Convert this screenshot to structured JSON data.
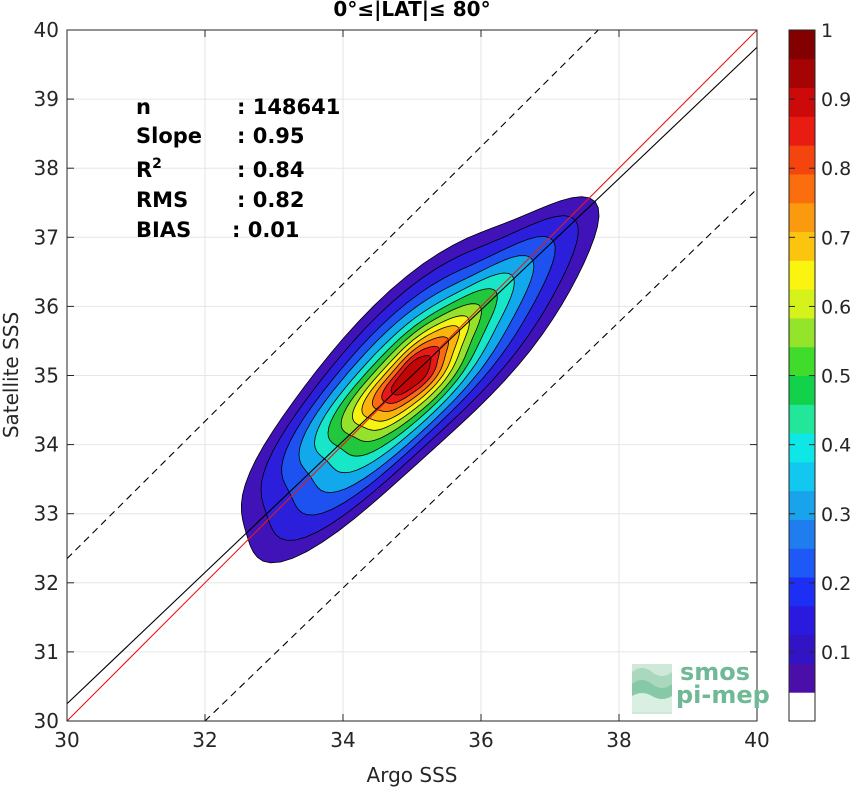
{
  "chart_data": {
    "type": "contour",
    "title": "0°≤|LAT|≤ 80°",
    "xlabel": "Argo SSS",
    "ylabel": "Satellite SSS",
    "xlim": [
      30,
      40
    ],
    "ylim": [
      30,
      40
    ],
    "xticks": [
      "30",
      "32",
      "34",
      "36",
      "38",
      "40"
    ],
    "yticks": [
      "30",
      "31",
      "32",
      "33",
      "34",
      "35",
      "36",
      "37",
      "38",
      "39",
      "40"
    ],
    "grid": true,
    "stats": [
      {
        "label": "n",
        "value": ": 148641"
      },
      {
        "label": "Slope",
        "value": ": 0.95"
      },
      {
        "label": "R",
        "sup": "2",
        "value": ": 0.84"
      },
      {
        "label": "RMS",
        "value": ": 0.82"
      },
      {
        "label": "BIAS",
        "value": ": 0.01"
      }
    ],
    "lines": [
      {
        "kind": "identity",
        "color": "#e41a1c",
        "x": [
          30,
          40
        ],
        "y": [
          30,
          40
        ]
      },
      {
        "kind": "fit",
        "color": "#000000",
        "x": [
          30,
          40
        ],
        "y": [
          30.25,
          39.75
        ]
      },
      {
        "kind": "upper-bound",
        "color": "#000000",
        "dash": true,
        "x": [
          30,
          37.7
        ],
        "y": [
          32.35,
          40
        ]
      },
      {
        "kind": "lower-bound",
        "color": "#000000",
        "dash": true,
        "x": [
          32.0,
          40
        ],
        "y": [
          30,
          37.7
        ]
      }
    ],
    "contour_center": {
      "x": 35.0,
      "y": 35.0
    },
    "contour_levels": [
      {
        "level": 0.05,
        "color": "#3f13b7",
        "rx": 3.5,
        "ry": 1.05
      },
      {
        "level": 0.1,
        "color": "#2b1fdb",
        "rx": 3.1,
        "ry": 0.92
      },
      {
        "level": 0.2,
        "color": "#1d52f0",
        "rx": 2.65,
        "ry": 0.8
      },
      {
        "level": 0.3,
        "color": "#11a8ec",
        "rx": 2.25,
        "ry": 0.7
      },
      {
        "level": 0.4,
        "color": "#17e6c8",
        "rx": 1.9,
        "ry": 0.6
      },
      {
        "level": 0.5,
        "color": "#21c73c",
        "rx": 1.6,
        "ry": 0.52
      },
      {
        "level": 0.6,
        "color": "#95e12b",
        "rx": 1.32,
        "ry": 0.45
      },
      {
        "level": 0.65,
        "color": "#f4f314",
        "rx": 1.1,
        "ry": 0.38
      },
      {
        "level": 0.7,
        "color": "#fbb40d",
        "rx": 0.92,
        "ry": 0.32
      },
      {
        "level": 0.8,
        "color": "#fa6a12",
        "rx": 0.72,
        "ry": 0.26
      },
      {
        "level": 0.9,
        "color": "#e91818",
        "rx": 0.55,
        "ry": 0.2
      },
      {
        "level": 0.95,
        "color": "#c10606",
        "rx": 0.38,
        "ry": 0.14
      }
    ],
    "colorbar": {
      "ticks": [
        "0.1",
        "0.2",
        "0.3",
        "0.4",
        "0.5",
        "0.6",
        "0.7",
        "0.8",
        "0.9",
        "1"
      ],
      "colors": [
        "#ffffff",
        "#4a0fa8",
        "#3214c4",
        "#2a1adf",
        "#1d2ff5",
        "#1e58f6",
        "#1f7df0",
        "#18a3ea",
        "#13c8f0",
        "#0ee7e5",
        "#22e69a",
        "#12d24c",
        "#3fdc2c",
        "#93e42b",
        "#d5f21a",
        "#fbf310",
        "#fbc40e",
        "#fb9a0e",
        "#fa6e0e",
        "#f4450f",
        "#e91c12",
        "#cc0a0a",
        "#a60404",
        "#820000"
      ]
    }
  },
  "logo": {
    "line1": "smos",
    "line2": "pi-mep"
  }
}
